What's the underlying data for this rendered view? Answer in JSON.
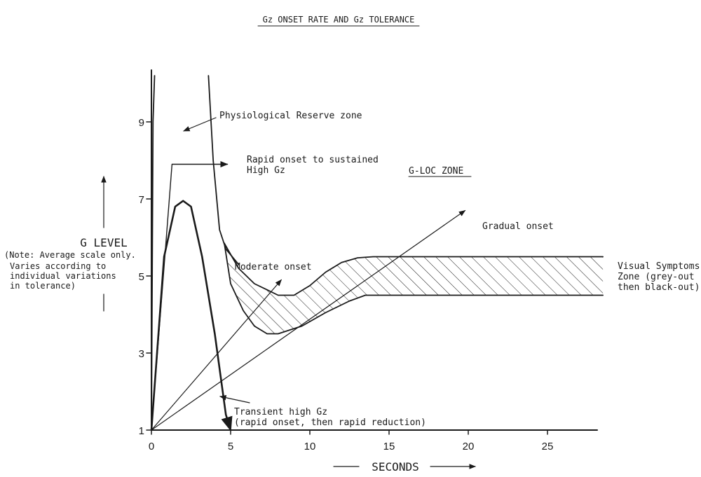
{
  "title": "Gz ONSET RATE AND Gz TOLERANCE",
  "y_axis": {
    "label": "G LEVEL",
    "note": [
      "(Note: Average scale only.",
      "Varies according to",
      "individual variations",
      "in tolerance)"
    ],
    "ticks": [
      "9",
      "7",
      "5",
      "3",
      "1"
    ]
  },
  "x_axis": {
    "label": "SECONDS",
    "ticks": [
      "0",
      "5",
      "10",
      "15",
      "20",
      "25"
    ]
  },
  "annotations": {
    "physiological_reserve": "Physiological Reserve zone",
    "rapid_onset_line1": "Rapid onset to sustained",
    "rapid_onset_line2": "High Gz",
    "gloc_zone": "G-LOC ZONE",
    "gradual_onset": "Gradual onset",
    "moderate_onset": "Moderate onset",
    "transient_line1": "Transient high Gz",
    "transient_line2": "(rapid onset, then rapid reduction)",
    "visual_line1": "Visual Symptoms",
    "visual_line2": "Zone (grey-out",
    "visual_line3": "then black-out)"
  },
  "chart_data": {
    "type": "line",
    "xlim": [
      0,
      28.5
    ],
    "ylim": [
      1,
      10.2
    ],
    "series": [
      {
        "x": [
          0,
          1.3,
          4.8
        ],
        "y": [
          1,
          7.9,
          7.9
        ]
      },
      {
        "x": [
          0,
          0.8,
          1.5,
          2,
          2.5,
          3.2,
          4.0,
          4.7,
          5.0
        ],
        "y": [
          1,
          5.5,
          6.8,
          6.95,
          6.8,
          5.5,
          3.5,
          1.4,
          1
        ]
      },
      {
        "x": [
          0,
          19.8
        ],
        "y": [
          1,
          6.7
        ]
      },
      {
        "x": [
          0,
          8.2
        ],
        "y": [
          1,
          4.9
        ]
      },
      {
        "x": [
          3.6,
          3.9,
          4.3,
          4.7,
          5.5
        ],
        "y": [
          10.2,
          8.0,
          6.2,
          5.7,
          5.3
        ]
      },
      {
        "x": [
          0,
          0.05,
          0.1,
          0.2
        ],
        "y": [
          1,
          5,
          9,
          10.2
        ]
      }
    ],
    "bands": [
      {
        "upper": {
          "x": [
            4.6,
            5.5,
            6.5,
            8.0,
            9.0,
            10.0,
            11.0,
            12.0,
            13.0,
            14.0,
            16.0,
            28.5
          ],
          "y": [
            5.85,
            5.2,
            4.8,
            4.5,
            4.5,
            4.75,
            5.1,
            5.35,
            5.47,
            5.5,
            5.5,
            5.5
          ]
        },
        "lower": {
          "x": [
            4.6,
            5.0,
            5.8,
            6.5,
            7.3,
            8.0,
            9.5,
            11.0,
            12.5,
            13.5,
            14.5,
            16.0,
            28.5
          ],
          "y": [
            5.85,
            4.8,
            4.1,
            3.7,
            3.5,
            3.5,
            3.7,
            4.05,
            4.35,
            4.5,
            4.5,
            4.5,
            4.5
          ]
        }
      }
    ],
    "axes": {
      "x_ticks": [
        0,
        5,
        10,
        15,
        20,
        25
      ],
      "y_ticks": [
        1,
        3,
        5,
        7,
        9
      ]
    }
  }
}
